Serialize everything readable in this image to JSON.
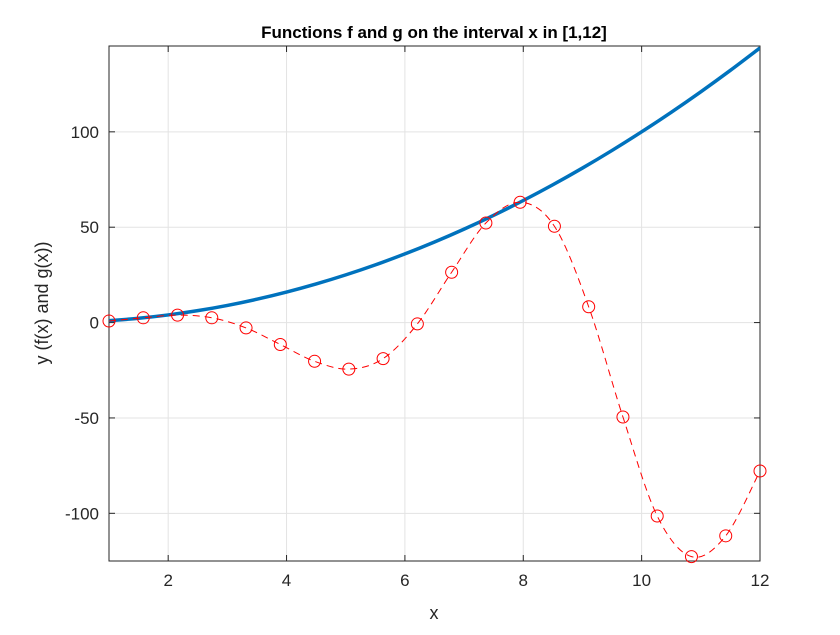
{
  "chart_data": {
    "type": "line",
    "title": "Functions f and g on the interval x in [1,12]",
    "xlabel": "x",
    "ylabel": "y (f(x) and g(x))",
    "xlim": [
      1,
      12
    ],
    "ylim": [
      -125,
      145
    ],
    "xticks": [
      2,
      4,
      6,
      8,
      10,
      12
    ],
    "yticks": [
      -100,
      -50,
      0,
      50,
      100
    ],
    "grid": true,
    "series": [
      {
        "color": "#0072BD",
        "style": "solid",
        "marker": "none",
        "x": [
          1,
          1.5,
          2,
          2.5,
          3,
          3.5,
          4,
          4.5,
          5,
          5.5,
          6,
          6.5,
          7,
          7.5,
          8,
          8.5,
          9,
          9.5,
          10,
          10.5,
          11,
          11.5,
          12
        ],
        "values": [
          1,
          2.25,
          4,
          6.25,
          9,
          12.25,
          16,
          20.25,
          25,
          30.25,
          36,
          42.25,
          49,
          56.25,
          64,
          72.25,
          81,
          90.25,
          100,
          110.25,
          121,
          132.25,
          144
        ]
      },
      {
        "color": "#FF0000",
        "style": "dashed",
        "marker": "circle",
        "x": [
          1,
          1.5789,
          2.1579,
          2.7368,
          3.3158,
          3.8947,
          4.4737,
          5.0526,
          5.6316,
          6.2105,
          6.7895,
          7.3684,
          7.9474,
          8.5263,
          9.1053,
          9.6842,
          10.2632,
          10.8421,
          11.4211,
          12
        ],
        "values": [
          0.8,
          2.5,
          3.9,
          2.5,
          -2.8,
          -11.5,
          -20.3,
          -24.4,
          -18.9,
          -0.7,
          26.4,
          52.2,
          63.1,
          50.5,
          8.3,
          -49.5,
          -101.4,
          -122.7,
          -111.8,
          -77.8
        ]
      }
    ]
  }
}
